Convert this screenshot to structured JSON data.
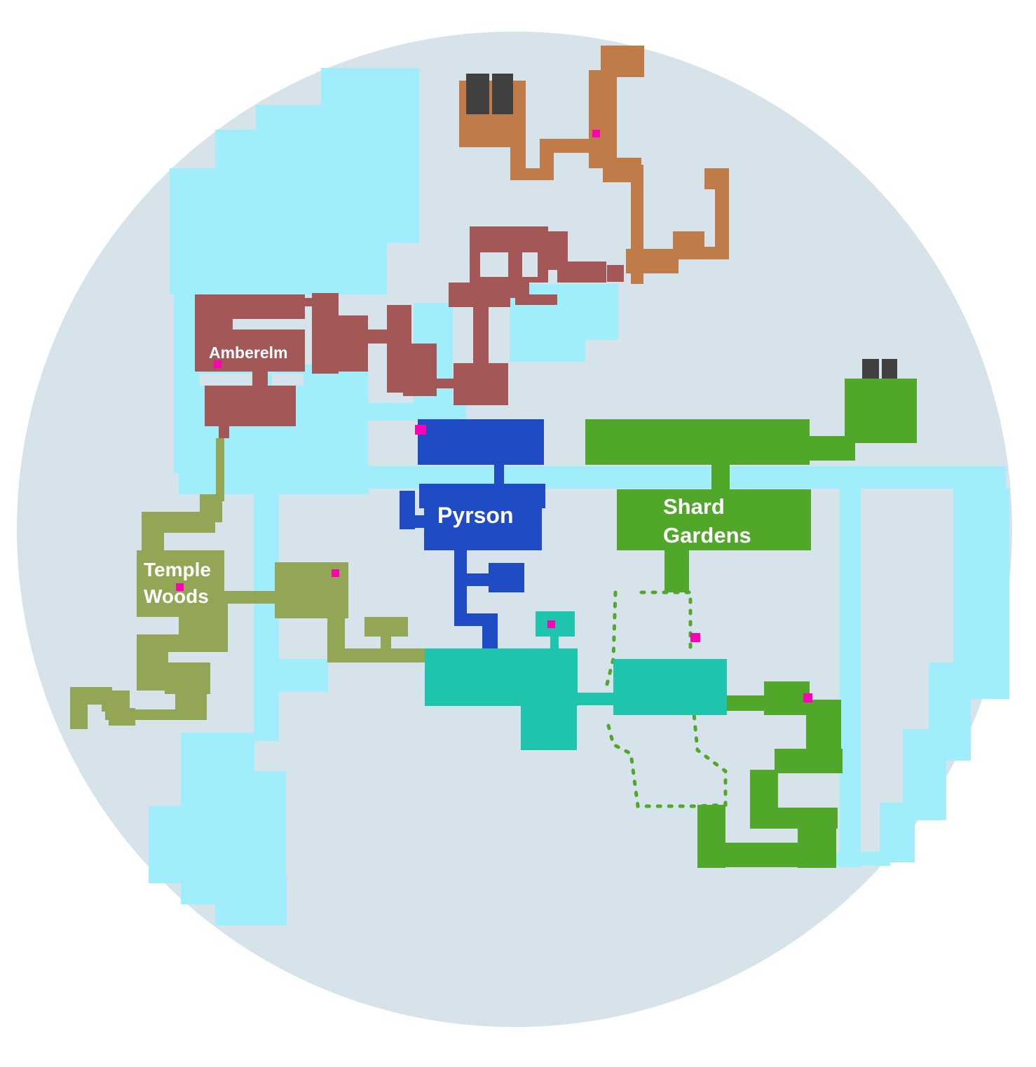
{
  "map": {
    "colors": {
      "background": "#ffffff",
      "land": "#d6e3ea",
      "water": "#a0eefc",
      "amberelm": "#a45757",
      "north": "#bf7c48",
      "pyrson": "#1f4bc4",
      "temple_woods": "#92a656",
      "shard_gardens": "#50a72a",
      "teal": "#1fc4ac",
      "gate": "#404040",
      "marker": "#ff00b4"
    },
    "regions": [
      {
        "id": "amberelm",
        "name": "Amberelm"
      },
      {
        "id": "pyrson",
        "name": "Pyrson"
      },
      {
        "id": "temple-woods",
        "name_line1": "Temple",
        "name_line2": "Woods"
      },
      {
        "id": "shard-gardens",
        "name_line1": "Shard",
        "name_line2": "Gardens"
      }
    ],
    "icons": [
      "gate-icon",
      "location-marker-icon"
    ]
  }
}
